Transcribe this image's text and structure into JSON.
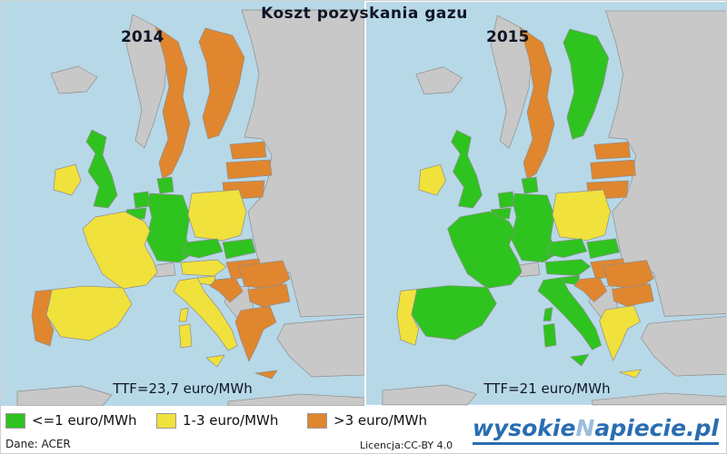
{
  "title": "Koszt pozyskania gazu",
  "maps": [
    {
      "year": "2014",
      "ttf_label": "TTF=23,7 euro/MWh",
      "countries": {
        "ireland": "mid",
        "uk": "low",
        "portugal": "high",
        "spain": "mid",
        "france": "mid",
        "belgium": "low",
        "netherlands": "low",
        "germany": "low",
        "denmark": "low",
        "sweden": "high",
        "finland": "high",
        "estonia": "high",
        "latvia": "high",
        "lithuania": "high",
        "poland": "mid",
        "czech": "low",
        "slovakia": "low",
        "austria": "mid",
        "hungary": "high",
        "slovenia": "mid",
        "croatia": "high",
        "italy": "mid",
        "romania": "high",
        "bulgaria": "high",
        "greece": "high"
      }
    },
    {
      "year": "2015",
      "ttf_label": "TTF=21 euro/MWh",
      "countries": {
        "ireland": "mid",
        "uk": "low",
        "portugal": "mid",
        "spain": "low",
        "france": "low",
        "belgium": "low",
        "netherlands": "low",
        "germany": "low",
        "denmark": "low",
        "sweden": "high",
        "finland": "low",
        "estonia": "high",
        "latvia": "high",
        "lithuania": "high",
        "poland": "mid",
        "czech": "low",
        "slovakia": "low",
        "austria": "low",
        "hungary": "high",
        "slovenia": "low",
        "croatia": "high",
        "italy": "low",
        "romania": "high",
        "bulgaria": "high",
        "greece": "mid"
      }
    }
  ],
  "legend": {
    "items": [
      {
        "id": "low",
        "label": "<=1 euro/MWh",
        "color": "#2fc31f"
      },
      {
        "id": "mid",
        "label": "1-3 euro/MWh",
        "color": "#f0e13c"
      },
      {
        "id": "high",
        "label": ">3 euro/MWh",
        "color": "#e0862f"
      }
    ]
  },
  "map_colors": {
    "sea": "#b7d8e7",
    "non_eu": "#c8c8c8",
    "border": "#8e8e8e"
  },
  "footer": {
    "source": "Dane: ACER",
    "license": "Licencja:CC-BY 4.0",
    "logo": {
      "part1": "wysokie",
      "n": "N",
      "part2": "apiecie.pl"
    },
    "logo_color": "#2a6db2",
    "logo_n_color": "#9bbdde"
  }
}
